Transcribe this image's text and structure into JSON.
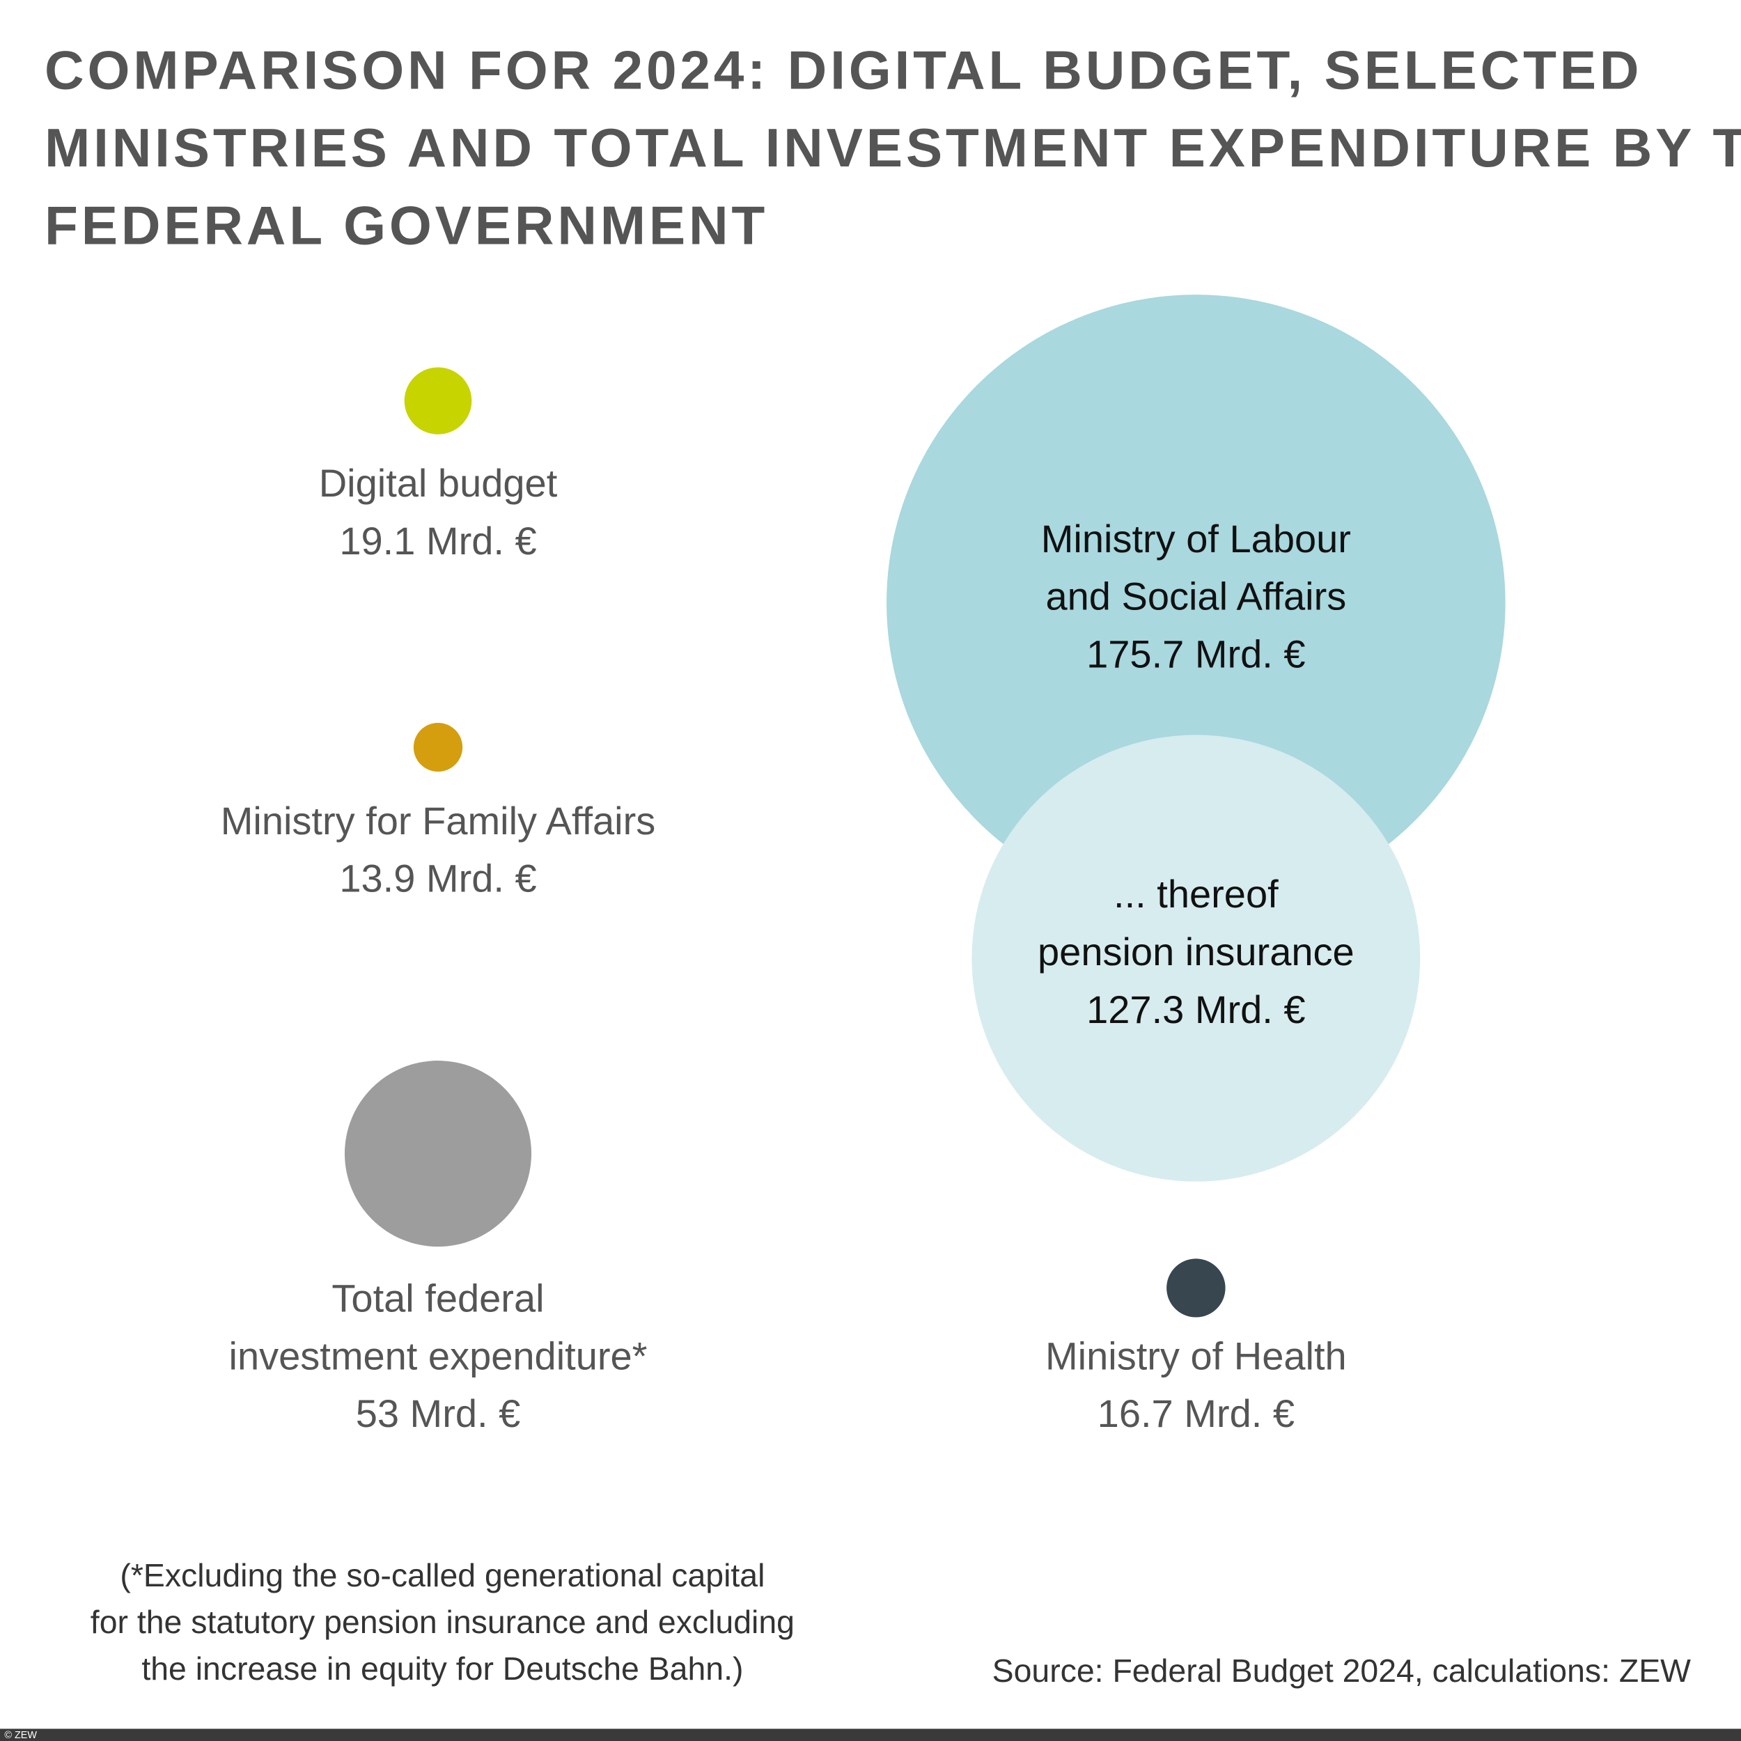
{
  "chart_data": {
    "type": "bubble",
    "title": [
      "COMPARISON FOR 2024: DIGITAL BUDGET, SELECTED",
      "MINISTRIES AND TOTAL INVESTMENT EXPENDITURE BY THE",
      "FEDERAL GOVERNMENT"
    ],
    "categories": [
      [
        "Digital budget"
      ],
      [
        "Ministry for Family Affairs"
      ],
      [
        "Total federal",
        "investment expenditure*"
      ],
      [
        "Ministry of Labour",
        "and Social Affairs"
      ],
      [
        "... thereof",
        "pension insurance"
      ],
      [
        "Ministry of Health"
      ]
    ],
    "values": [
      19.1,
      13.9,
      53,
      175.7,
      127.3,
      16.7
    ],
    "value_labels": [
      "19.1 Mrd. €",
      "13.9 Mrd. €",
      "53 Mrd. €",
      "175.7 Mrd. €",
      "127.3 Mrd. €",
      "16.7 Mrd. €"
    ],
    "colors": [
      "#c8d400",
      "#d49e0e",
      "#9d9d9d",
      "#a9d8de",
      "#d7ecef",
      "#37464f"
    ],
    "footnote": [
      "(*Excluding the so-called generational capital",
      "for the statutory pension insurance and excluding",
      "the increase in equity for Deutsche Bahn.)"
    ],
    "source": "Source: Federal Budget 2024, calculations: ZEW",
    "copyright": "© ZEW"
  }
}
